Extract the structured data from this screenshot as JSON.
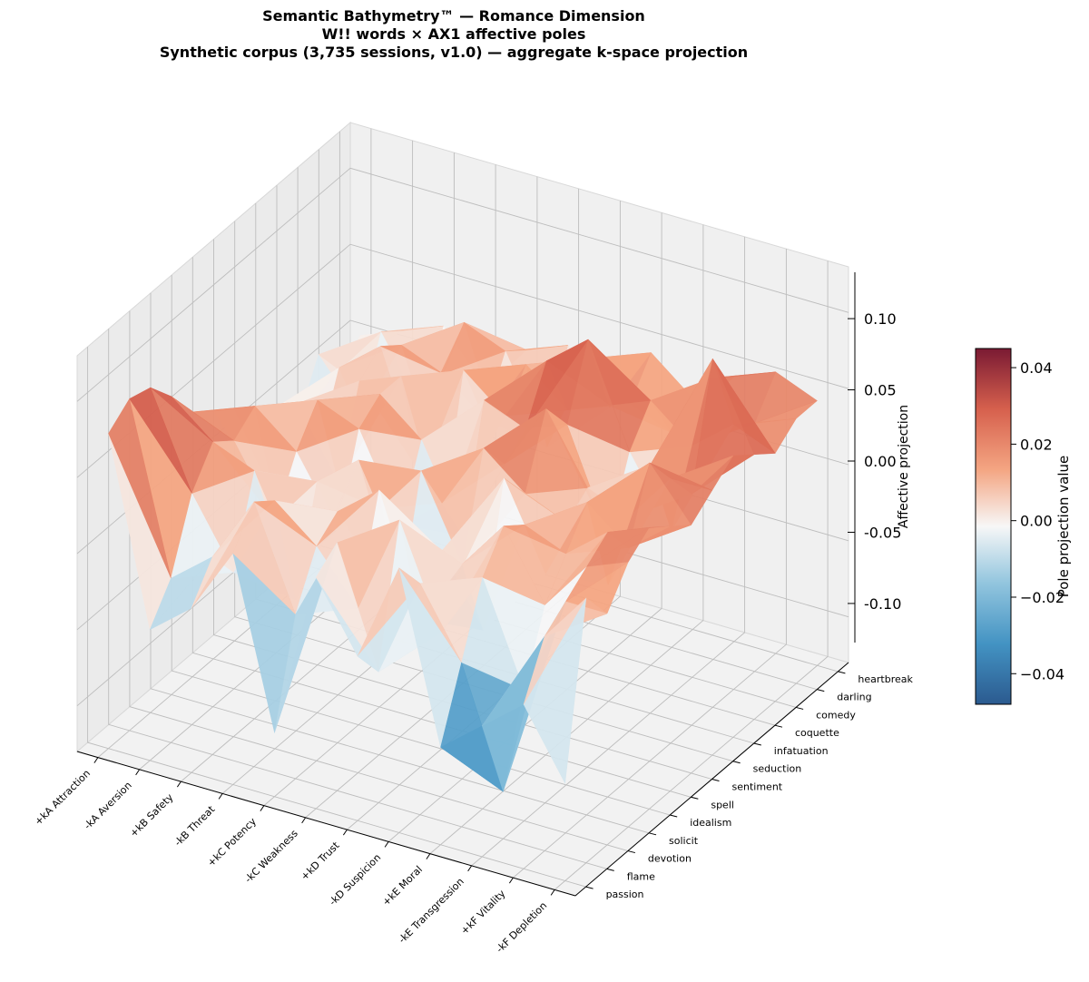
{
  "chart_data": {
    "type": "surface3d",
    "title_lines": [
      "Semantic Bathymetry™ — Romance Dimension",
      "W!! words × AX1 affective poles",
      "Synthetic corpus (3,735 sessions, v1.0) — aggregate k-space projection"
    ],
    "x_categories": [
      "+kA Attraction",
      "-kA Aversion",
      "+kB Safety",
      "-kB Threat",
      "+kC Potency",
      "-kC Weakness",
      "+kD Trust",
      "-kD Suspicion",
      "+kE Moral",
      "-kE Transgression",
      "+kF Vitality",
      "-kF Depletion"
    ],
    "y_categories": [
      "passion",
      "flame",
      "devotion",
      "solicit",
      "idealism",
      "spell",
      "sentiment",
      "seduction",
      "infatuation",
      "coquette",
      "comedy",
      "darling",
      "heartbreak"
    ],
    "zlabel": "Affective projection",
    "zticks": [
      0.1,
      0.05,
      0.0,
      -0.05,
      -0.1
    ],
    "zlim": [
      -0.13,
      0.13
    ],
    "colorbar": {
      "label": "Pole projection value",
      "ticks": [
        0.04,
        0.02,
        0.0,
        -0.02,
        -0.04
      ],
      "range": [
        -0.048,
        0.045
      ],
      "colormap": "RdBu_r"
    },
    "values": [
      [
        0.035,
        -0.02,
        -0.01,
        0.01,
        -0.04,
        0.01,
        -0.01,
        0.02,
        -0.03,
        -0.02,
        -0.01,
        -0.03
      ],
      [
        0.04,
        -0.01,
        0.0,
        0.02,
        -0.01,
        0.015,
        -0.02,
        0.01,
        -0.01,
        -0.045,
        0.005,
        0.02
      ],
      [
        0.038,
        0.01,
        -0.01,
        0.015,
        0.005,
        -0.01,
        0.02,
        -0.01,
        0.01,
        -0.02,
        0.01,
        0.01
      ],
      [
        0.03,
        0.02,
        0.015,
        -0.02,
        0.01,
        0.02,
        -0.015,
        0.005,
        0.02,
        0.0,
        0.015,
        0.02
      ],
      [
        0.02,
        0.015,
        -0.005,
        0.01,
        0.02,
        -0.02,
        0.0,
        -0.02,
        0.015,
        0.01,
        0.02,
        0.025
      ],
      [
        0.015,
        0.02,
        0.01,
        -0.01,
        0.0,
        0.015,
        -0.01,
        0.02,
        -0.005,
        0.02,
        0.01,
        0.02
      ],
      [
        0.01,
        -0.015,
        0.02,
        0.015,
        -0.01,
        0.0,
        0.02,
        0.01,
        0.005,
        -0.01,
        0.03,
        0.015
      ],
      [
        0.005,
        0.01,
        -0.01,
        0.02,
        0.01,
        -0.015,
        0.01,
        0.03,
        0.01,
        0.005,
        0.02,
        0.02
      ],
      [
        0.0,
        -0.01,
        0.015,
        0.02,
        -0.02,
        0.02,
        0.015,
        0.02,
        -0.01,
        0.015,
        0.01,
        0.025
      ],
      [
        -0.01,
        0.01,
        0.02,
        -0.015,
        0.02,
        0.01,
        0.03,
        0.04,
        0.01,
        -0.01,
        0.045,
        0.02
      ],
      [
        0.005,
        -0.01,
        0.015,
        0.01,
        0.0,
        0.02,
        0.01,
        0.015,
        0.02,
        0.01,
        0.02,
        0.015
      ],
      [
        -0.005,
        0.01,
        -0.01,
        0.02,
        0.015,
        -0.01,
        0.02,
        0.01,
        0.005,
        0.025,
        0.015,
        0.02
      ],
      [
        0.0,
        0.005,
        0.01,
        -0.005,
        0.01,
        0.015,
        0.0,
        0.02,
        0.01,
        0.02,
        0.025,
        0.02
      ]
    ],
    "grid": true,
    "legend": "colorbar-right"
  }
}
